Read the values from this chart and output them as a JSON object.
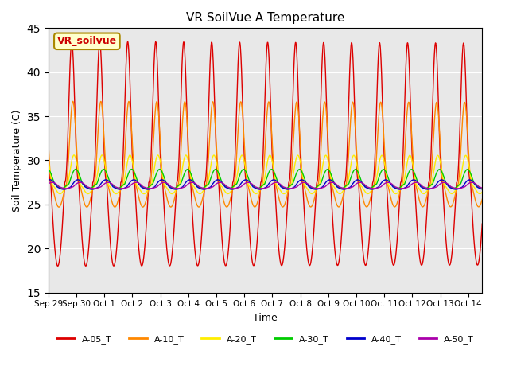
{
  "title": "VR SoilVue A Temperature",
  "xlabel": "Time",
  "ylabel": "Soil Temperature (C)",
  "ylim": [
    15,
    45
  ],
  "yticks": [
    15,
    20,
    25,
    30,
    35,
    40,
    45
  ],
  "background_color": "#e8e8e8",
  "annotation_text": "VR_soilvue",
  "annotation_box_color": "#ffffcc",
  "annotation_box_edge": "#aa8800",
  "series_colors": {
    "A-05_T": "#dd0000",
    "A-10_T": "#ff8800",
    "A-20_T": "#ffee00",
    "A-30_T": "#00cc00",
    "A-40_T": "#0000cc",
    "A-50_T": "#aa00aa"
  },
  "num_days": 15.5,
  "samples_per_day": 96,
  "xtick_labels": [
    "Sep 29",
    "Sep 30",
    "Oct 1",
    "Oct 2",
    "Oct 3",
    "Oct 4",
    "Oct 5",
    "Oct 6",
    "Oct 7",
    "Oct 8",
    "Oct 9",
    "Oct 10",
    "Oct 11",
    "Oct 12",
    "Oct 13",
    "Oct 14"
  ],
  "legend_entries": [
    "A-05_T",
    "A-10_T",
    "A-20_T",
    "A-30_T",
    "A-40_T",
    "A-50_T"
  ]
}
